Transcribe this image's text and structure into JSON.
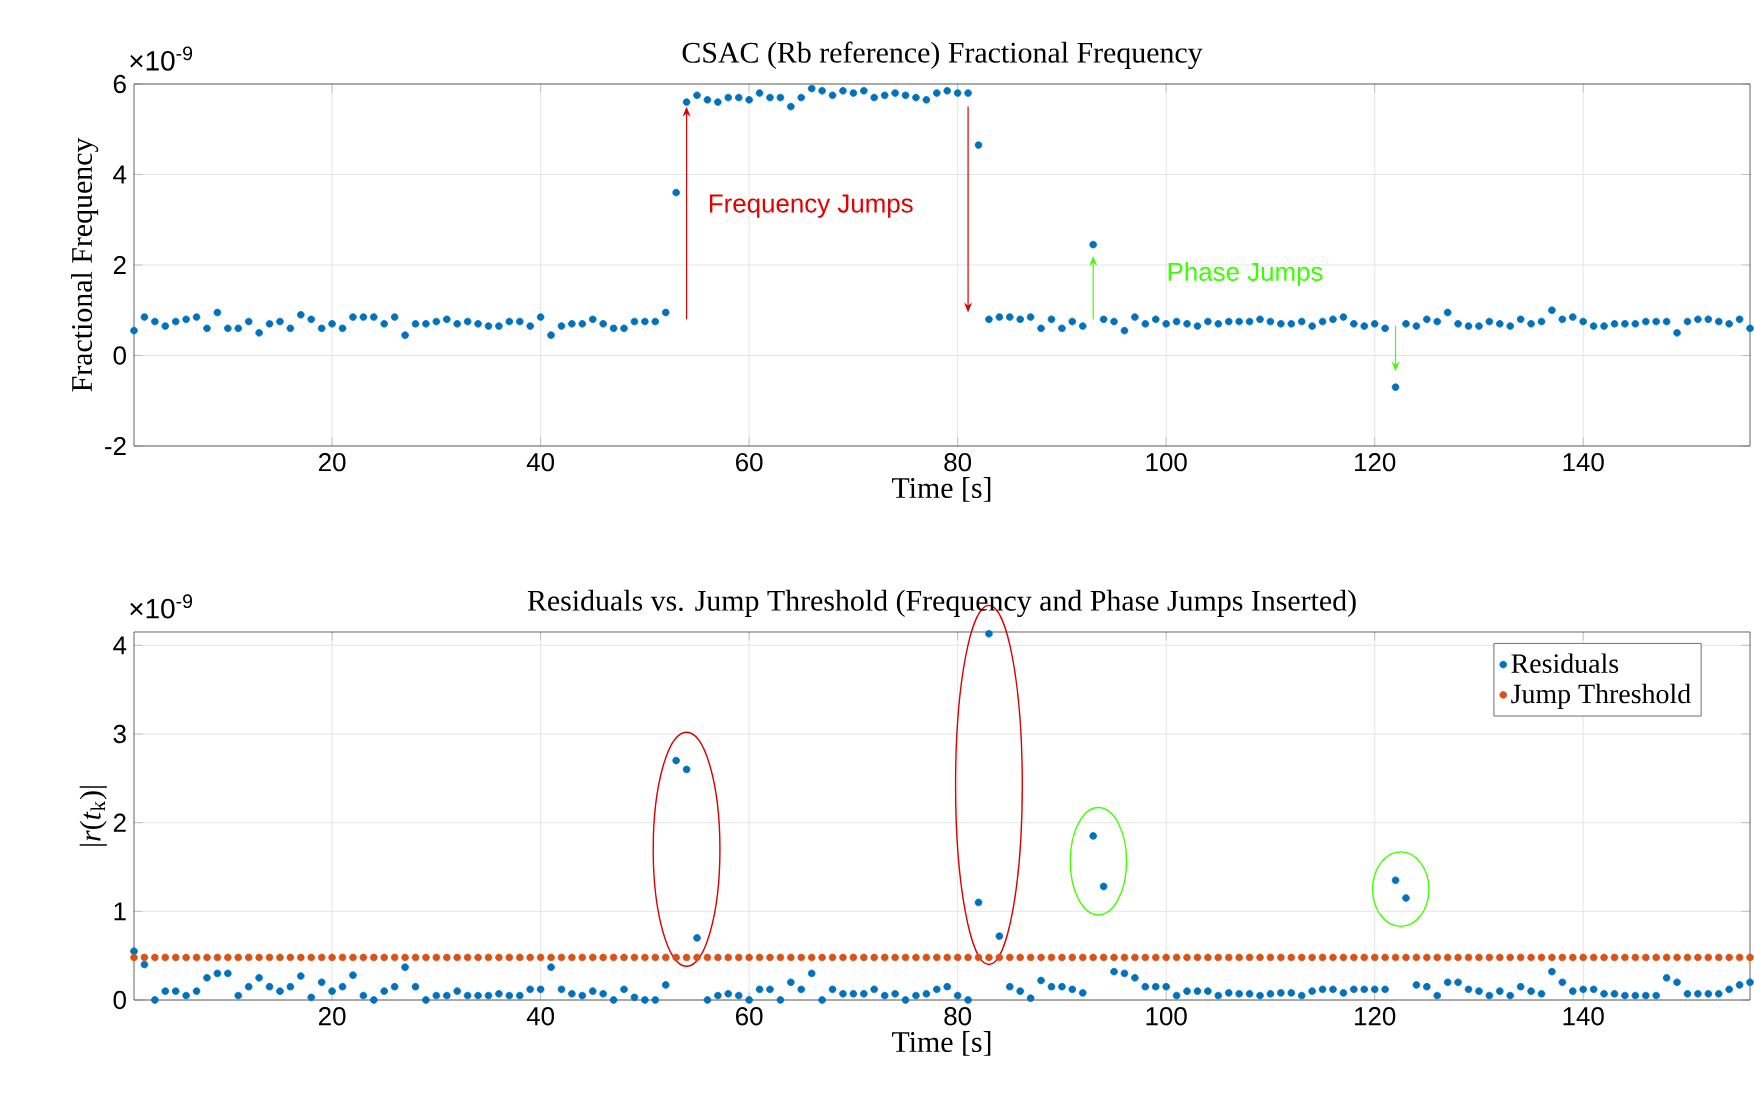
{
  "chart_data": [
    {
      "type": "scatter",
      "title": "CSAC (Rb reference) Fractional Frequency",
      "xlabel": "Time [s]",
      "ylabel": "Fractional Frequency",
      "x": [
        1,
        2,
        3,
        4,
        5,
        6,
        7,
        8,
        9,
        10,
        11,
        12,
        13,
        14,
        15,
        16,
        17,
        18,
        19,
        20,
        21,
        22,
        23,
        24,
        25,
        26,
        27,
        28,
        29,
        30,
        31,
        32,
        33,
        34,
        35,
        36,
        37,
        38,
        39,
        40,
        41,
        42,
        43,
        44,
        45,
        46,
        47,
        48,
        49,
        50,
        51,
        52,
        53,
        54,
        55,
        56,
        57,
        58,
        59,
        60,
        61,
        62,
        63,
        64,
        65,
        66,
        67,
        68,
        69,
        70,
        71,
        72,
        73,
        74,
        75,
        76,
        77,
        78,
        79,
        80,
        81,
        82,
        83,
        84,
        85,
        86,
        87,
        88,
        89,
        90,
        91,
        92,
        93,
        94,
        95,
        96,
        97,
        98,
        99,
        100,
        101,
        102,
        103,
        104,
        105,
        106,
        107,
        108,
        109,
        110,
        111,
        112,
        113,
        114,
        115,
        116,
        117,
        118,
        119,
        120,
        121,
        122,
        123,
        124,
        125,
        126,
        127,
        128,
        129,
        130,
        131,
        132,
        133,
        134,
        135,
        136,
        137,
        138,
        139,
        140,
        141,
        142,
        143,
        144,
        145,
        146,
        147,
        148,
        149,
        150,
        151,
        152,
        153,
        154,
        155,
        156
      ],
      "series": [
        {
          "color": "#0072bd",
          "values": [
            0.55,
            0.85,
            0.75,
            0.65,
            0.75,
            0.8,
            0.85,
            0.6,
            0.95,
            0.6,
            0.6,
            0.75,
            0.5,
            0.7,
            0.75,
            0.6,
            0.9,
            0.8,
            0.6,
            0.7,
            0.6,
            0.85,
            0.85,
            0.85,
            0.7,
            0.85,
            0.45,
            0.7,
            0.7,
            0.75,
            0.8,
            0.7,
            0.75,
            0.7,
            0.65,
            0.65,
            0.75,
            0.75,
            0.65,
            0.85,
            0.45,
            0.65,
            0.7,
            0.7,
            0.8,
            0.7,
            0.6,
            0.6,
            0.75,
            0.75,
            0.75,
            0.95,
            3.6,
            5.6,
            5.75,
            5.65,
            5.6,
            5.7,
            5.7,
            5.65,
            5.8,
            5.7,
            5.7,
            5.5,
            5.7,
            5.9,
            5.85,
            5.75,
            5.85,
            5.8,
            5.85,
            5.7,
            5.75,
            5.8,
            5.75,
            5.7,
            5.65,
            5.8,
            5.85,
            5.8,
            5.8,
            4.65,
            0.8,
            0.85,
            0.85,
            0.8,
            0.85,
            0.6,
            0.8,
            0.6,
            0.75,
            0.65,
            2.45,
            0.8,
            0.75,
            0.55,
            0.85,
            0.7,
            0.8,
            0.7,
            0.75,
            0.7,
            0.65,
            0.75,
            0.7,
            0.75,
            0.75,
            0.75,
            0.8,
            0.75,
            0.7,
            0.7,
            0.75,
            0.65,
            0.75,
            0.8,
            0.85,
            0.7,
            0.65,
            0.7,
            0.6,
            -0.7,
            0.7,
            0.65,
            0.8,
            0.75,
            0.95,
            0.7,
            0.65,
            0.65,
            0.75,
            0.7,
            0.65,
            0.8,
            0.7,
            0.75,
            1.0,
            0.8,
            0.85,
            0.75,
            0.65,
            0.65,
            0.7,
            0.7,
            0.7,
            0.75,
            0.75,
            0.75,
            0.5,
            0.75,
            0.8,
            0.8,
            0.75,
            0.7,
            0.8,
            0.6
          ]
        }
      ],
      "xlim": [
        1,
        156
      ],
      "xticks": [
        20,
        40,
        60,
        80,
        100,
        120,
        140
      ],
      "ylim": [
        -2,
        6
      ],
      "yticks": [
        -2,
        0,
        2,
        4,
        6
      ],
      "grid": true,
      "marker": "circle",
      "annotations": [
        "×10$^{-9}$",
        "Frequency Jumps",
        "Phase Jumps"
      ]
    },
    {
      "type": "scatter",
      "title": "Residuals vs. Jump Threshold (Frequency and Phase Jumps Inserted)",
      "xlabel": "Time [s]",
      "ylabel": "|*r*(*t*$_{k}$)|",
      "x": [
        1,
        2,
        3,
        4,
        5,
        6,
        7,
        8,
        9,
        10,
        11,
        12,
        13,
        14,
        15,
        16,
        17,
        18,
        19,
        20,
        21,
        22,
        23,
        24,
        25,
        26,
        27,
        28,
        29,
        30,
        31,
        32,
        33,
        34,
        35,
        36,
        37,
        38,
        39,
        40,
        41,
        42,
        43,
        44,
        45,
        46,
        47,
        48,
        49,
        50,
        51,
        52,
        53,
        54,
        55,
        56,
        57,
        58,
        59,
        60,
        61,
        62,
        63,
        64,
        65,
        66,
        67,
        68,
        69,
        70,
        71,
        72,
        73,
        74,
        75,
        76,
        77,
        78,
        79,
        80,
        81,
        82,
        83,
        84,
        85,
        86,
        87,
        88,
        89,
        90,
        91,
        92,
        93,
        94,
        95,
        96,
        97,
        98,
        99,
        100,
        101,
        102,
        103,
        104,
        105,
        106,
        107,
        108,
        109,
        110,
        111,
        112,
        113,
        114,
        115,
        116,
        117,
        118,
        119,
        120,
        121,
        122,
        123,
        124,
        125,
        126,
        127,
        128,
        129,
        130,
        131,
        132,
        133,
        134,
        135,
        136,
        137,
        138,
        139,
        140,
        141,
        142,
        143,
        144,
        145,
        146,
        147,
        148,
        149,
        150,
        151,
        152,
        153,
        154,
        155,
        156
      ],
      "series": [
        {
          "name": "Residuals",
          "color": "#0072bd",
          "values": [
            0.55,
            0.4,
            0.0,
            0.1,
            0.1,
            0.05,
            0.1,
            0.25,
            0.3,
            0.3,
            0.05,
            0.15,
            0.25,
            0.15,
            0.1,
            0.15,
            0.27,
            0.03,
            0.2,
            0.1,
            0.15,
            0.28,
            0.05,
            0.0,
            0.1,
            0.15,
            0.37,
            0.15,
            0.0,
            0.05,
            0.05,
            0.1,
            0.05,
            0.05,
            0.05,
            0.07,
            0.05,
            0.05,
            0.12,
            0.12,
            0.37,
            0.12,
            0.07,
            0.05,
            0.1,
            0.07,
            0.0,
            0.12,
            0.03,
            0.0,
            0.0,
            0.17,
            2.7,
            2.6,
            0.7,
            0.0,
            0.05,
            0.07,
            0.05,
            0.0,
            0.12,
            0.12,
            0.0,
            0.2,
            0.12,
            0.3,
            0.0,
            0.12,
            0.07,
            0.07,
            0.07,
            0.12,
            0.05,
            0.07,
            0.0,
            0.05,
            0.07,
            0.12,
            0.15,
            0.05,
            0.0,
            1.1,
            4.13,
            0.72,
            0.15,
            0.1,
            0.02,
            0.22,
            0.15,
            0.15,
            0.12,
            0.08,
            1.85,
            1.28,
            0.32,
            0.3,
            0.25,
            0.15,
            0.15,
            0.15,
            0.05,
            0.1,
            0.1,
            0.1,
            0.05,
            0.08,
            0.07,
            0.07,
            0.05,
            0.07,
            0.08,
            0.08,
            0.05,
            0.1,
            0.12,
            0.12,
            0.08,
            0.12,
            0.12,
            0.12,
            0.12,
            1.35,
            1.15,
            0.17,
            0.15,
            0.05,
            0.2,
            0.2,
            0.12,
            0.1,
            0.05,
            0.1,
            0.05,
            0.15,
            0.1,
            0.07,
            0.32,
            0.2,
            0.1,
            0.12,
            0.12,
            0.07,
            0.07,
            0.05,
            0.05,
            0.05,
            0.05,
            0.25,
            0.2,
            0.07,
            0.07,
            0.07,
            0.07,
            0.12,
            0.17,
            0.2
          ]
        },
        {
          "name": "Jump Threshold",
          "color": "#d95319",
          "values": [
            0.48,
            0.48,
            0.48,
            0.48,
            0.48,
            0.48,
            0.48,
            0.48,
            0.48,
            0.48,
            0.48,
            0.48,
            0.48,
            0.48,
            0.48,
            0.48,
            0.48,
            0.48,
            0.48,
            0.48,
            0.48,
            0.48,
            0.48,
            0.48,
            0.48,
            0.48,
            0.48,
            0.48,
            0.48,
            0.48,
            0.48,
            0.48,
            0.48,
            0.48,
            0.48,
            0.48,
            0.48,
            0.48,
            0.48,
            0.48,
            0.48,
            0.48,
            0.48,
            0.48,
            0.48,
            0.48,
            0.48,
            0.48,
            0.48,
            0.48,
            0.48,
            0.48,
            0.48,
            0.48,
            0.48,
            0.48,
            0.48,
            0.48,
            0.48,
            0.48,
            0.48,
            0.48,
            0.48,
            0.48,
            0.48,
            0.48,
            0.48,
            0.48,
            0.48,
            0.48,
            0.48,
            0.48,
            0.48,
            0.48,
            0.48,
            0.48,
            0.48,
            0.48,
            0.48,
            0.48,
            0.48,
            0.48,
            0.48,
            0.48,
            0.48,
            0.48,
            0.48,
            0.48,
            0.48,
            0.48,
            0.48,
            0.48,
            0.48,
            0.48,
            0.48,
            0.48,
            0.48,
            0.48,
            0.48,
            0.48,
            0.48,
            0.48,
            0.48,
            0.48,
            0.48,
            0.48,
            0.48,
            0.48,
            0.48,
            0.48,
            0.48,
            0.48,
            0.48,
            0.48,
            0.48,
            0.48,
            0.48,
            0.48,
            0.48,
            0.48,
            0.48,
            0.48,
            0.48,
            0.48,
            0.48,
            0.48,
            0.48,
            0.48,
            0.48,
            0.48,
            0.48,
            0.48,
            0.48,
            0.48,
            0.48,
            0.48,
            0.48,
            0.48,
            0.48,
            0.48,
            0.48,
            0.48,
            0.48,
            0.48,
            0.48,
            0.48,
            0.48,
            0.48,
            0.48,
            0.48,
            0.48,
            0.48,
            0.48,
            0.48,
            0.48,
            0.48
          ]
        }
      ],
      "xlim": [
        1,
        156
      ],
      "xticks": [
        20,
        40,
        60,
        80,
        100,
        120,
        140
      ],
      "ylim": [
        0,
        4.15
      ],
      "yticks": [
        0,
        1,
        2,
        3,
        4
      ],
      "grid": true,
      "marker": "circle",
      "legend": "top right",
      "annotations": [
        "×10$^{-9}$"
      ]
    }
  ]
}
